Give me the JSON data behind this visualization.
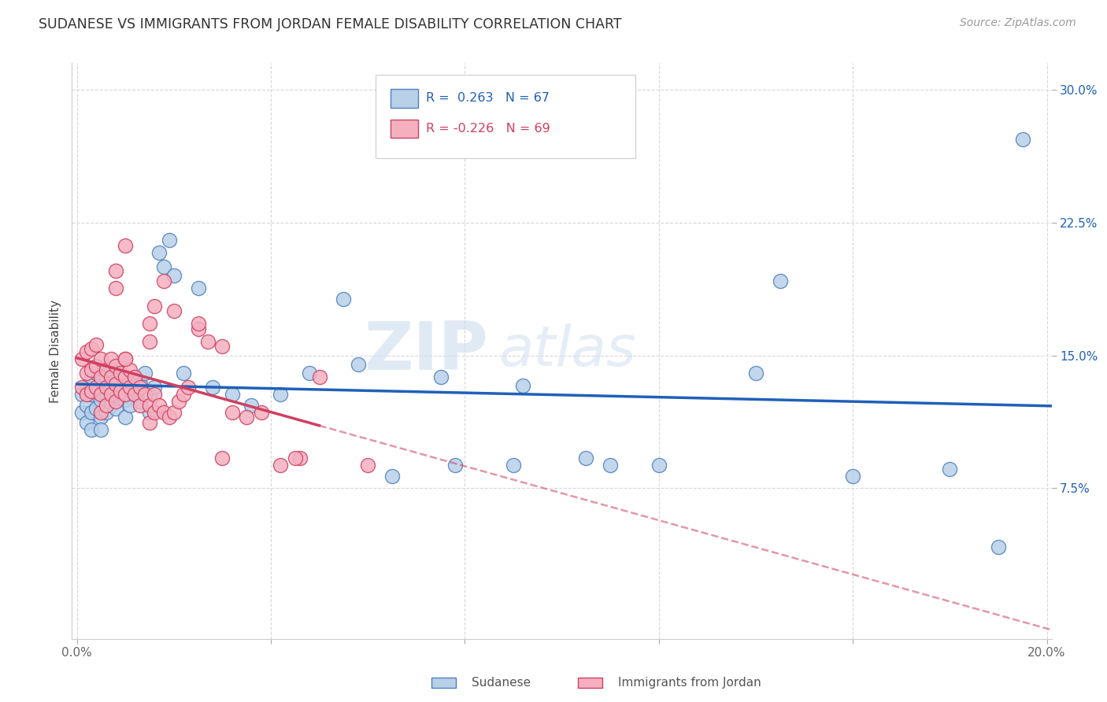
{
  "title": "SUDANESE VS IMMIGRANTS FROM JORDAN FEMALE DISABILITY CORRELATION CHART",
  "source": "Source: ZipAtlas.com",
  "ylabel": "Female Disability",
  "xlim": [
    -0.001,
    0.201
  ],
  "ylim": [
    -0.01,
    0.315
  ],
  "xtick_positions": [
    0.0,
    0.04,
    0.08,
    0.12,
    0.16,
    0.2
  ],
  "xtick_labels": [
    "0.0%",
    "",
    "",
    "",
    "",
    "20.0%"
  ],
  "ytick_positions": [
    0.075,
    0.15,
    0.225,
    0.3
  ],
  "ytick_labels": [
    "7.5%",
    "15.0%",
    "22.5%",
    "30.0%"
  ],
  "legend_r1": "R =  0.263   N = 67",
  "legend_r2": "R = -0.226   N = 69",
  "legend_label1": "Sudanese",
  "legend_label2": "Immigrants from Jordan",
  "blue_fill": "#b8d0e8",
  "blue_edge": "#5080c0",
  "pink_fill": "#f5b0c0",
  "pink_edge": "#d04060",
  "blue_line": "#2060b8",
  "pink_line": "#d04060",
  "grid_color": "#d8d8d8",
  "blue_x": [
    0.001,
    0.001,
    0.002,
    0.002,
    0.002,
    0.003,
    0.003,
    0.003,
    0.003,
    0.004,
    0.004,
    0.004,
    0.005,
    0.005,
    0.005,
    0.005,
    0.006,
    0.006,
    0.006,
    0.007,
    0.007,
    0.007,
    0.008,
    0.008,
    0.008,
    0.009,
    0.009,
    0.01,
    0.01,
    0.01,
    0.011,
    0.011,
    0.012,
    0.012,
    0.013,
    0.013,
    0.014,
    0.015,
    0.015,
    0.016,
    0.017,
    0.018,
    0.019,
    0.02,
    0.022,
    0.025,
    0.028,
    0.032,
    0.036,
    0.042,
    0.048,
    0.055,
    0.065,
    0.078,
    0.092,
    0.105,
    0.12,
    0.14,
    0.16,
    0.18,
    0.195,
    0.058,
    0.075,
    0.09,
    0.11,
    0.145,
    0.19
  ],
  "blue_y": [
    0.128,
    0.118,
    0.132,
    0.122,
    0.112,
    0.138,
    0.128,
    0.118,
    0.108,
    0.14,
    0.13,
    0.12,
    0.135,
    0.125,
    0.115,
    0.108,
    0.138,
    0.128,
    0.118,
    0.142,
    0.132,
    0.122,
    0.14,
    0.13,
    0.12,
    0.136,
    0.126,
    0.135,
    0.125,
    0.115,
    0.132,
    0.122,
    0.138,
    0.128,
    0.134,
    0.124,
    0.14,
    0.128,
    0.118,
    0.132,
    0.208,
    0.2,
    0.215,
    0.195,
    0.14,
    0.188,
    0.132,
    0.128,
    0.122,
    0.128,
    0.14,
    0.182,
    0.082,
    0.088,
    0.133,
    0.092,
    0.088,
    0.14,
    0.082,
    0.086,
    0.272,
    0.145,
    0.138,
    0.088,
    0.088,
    0.192,
    0.042
  ],
  "pink_x": [
    0.001,
    0.001,
    0.002,
    0.002,
    0.002,
    0.003,
    0.003,
    0.003,
    0.004,
    0.004,
    0.004,
    0.005,
    0.005,
    0.005,
    0.005,
    0.006,
    0.006,
    0.006,
    0.007,
    0.007,
    0.007,
    0.008,
    0.008,
    0.008,
    0.009,
    0.009,
    0.01,
    0.01,
    0.01,
    0.011,
    0.011,
    0.012,
    0.012,
    0.013,
    0.013,
    0.014,
    0.015,
    0.015,
    0.016,
    0.016,
    0.017,
    0.018,
    0.019,
    0.02,
    0.021,
    0.022,
    0.023,
    0.025,
    0.027,
    0.03,
    0.032,
    0.035,
    0.038,
    0.042,
    0.046,
    0.05,
    0.018,
    0.02,
    0.025,
    0.015,
    0.015,
    0.016,
    0.01,
    0.01,
    0.008,
    0.008,
    0.03,
    0.045,
    0.06
  ],
  "pink_y": [
    0.132,
    0.148,
    0.14,
    0.152,
    0.128,
    0.142,
    0.154,
    0.13,
    0.156,
    0.144,
    0.132,
    0.148,
    0.138,
    0.128,
    0.118,
    0.142,
    0.132,
    0.122,
    0.148,
    0.138,
    0.128,
    0.144,
    0.134,
    0.124,
    0.14,
    0.13,
    0.148,
    0.138,
    0.128,
    0.142,
    0.132,
    0.138,
    0.128,
    0.132,
    0.122,
    0.128,
    0.122,
    0.112,
    0.128,
    0.118,
    0.122,
    0.118,
    0.115,
    0.118,
    0.124,
    0.128,
    0.132,
    0.165,
    0.158,
    0.092,
    0.118,
    0.115,
    0.118,
    0.088,
    0.092,
    0.138,
    0.192,
    0.175,
    0.168,
    0.158,
    0.168,
    0.178,
    0.212,
    0.148,
    0.188,
    0.198,
    0.155,
    0.092,
    0.088
  ]
}
